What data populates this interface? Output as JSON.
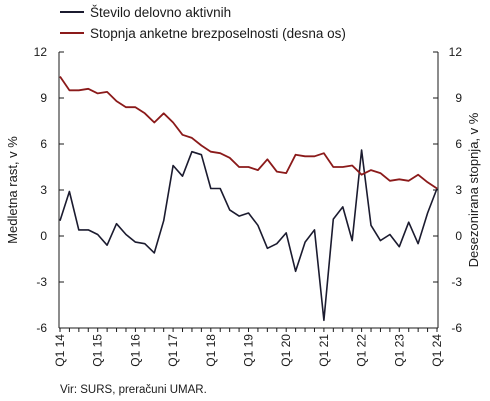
{
  "chart_data": {
    "type": "line",
    "x": [
      "Q1 14",
      "Q2 14",
      "Q3 14",
      "Q4 14",
      "Q1 15",
      "Q2 15",
      "Q3 15",
      "Q4 15",
      "Q1 16",
      "Q2 16",
      "Q3 16",
      "Q4 16",
      "Q1 17",
      "Q2 17",
      "Q3 17",
      "Q4 17",
      "Q1 18",
      "Q2 18",
      "Q3 18",
      "Q4 18",
      "Q1 19",
      "Q2 19",
      "Q3 19",
      "Q4 19",
      "Q1 20",
      "Q2 20",
      "Q3 20",
      "Q4 20",
      "Q1 21",
      "Q2 21",
      "Q3 21",
      "Q4 21",
      "Q1 22",
      "Q2 22",
      "Q3 22",
      "Q4 22",
      "Q1 23",
      "Q2 23",
      "Q3 23",
      "Q4 23",
      "Q1 24"
    ],
    "x_tick_labels": [
      "Q1 14",
      "Q1 15",
      "Q1 16",
      "Q1 17",
      "Q1 18",
      "Q1 19",
      "Q1 20",
      "Q1 21",
      "Q1 22",
      "Q1 23",
      "Q1 24"
    ],
    "series": [
      {
        "name": "Število delovno aktivnih",
        "axis": "left",
        "color": "#1b1b2f",
        "values": [
          1.0,
          2.9,
          0.4,
          0.4,
          0.1,
          -0.6,
          0.8,
          0.1,
          -0.4,
          -0.5,
          -1.1,
          1.0,
          4.6,
          3.9,
          5.5,
          5.3,
          3.1,
          3.1,
          1.7,
          1.3,
          1.5,
          0.7,
          -0.8,
          -0.5,
          0.2,
          -2.3,
          -0.4,
          0.4,
          -5.5,
          1.1,
          1.9,
          -0.3,
          5.6,
          0.7,
          -0.3,
          0.1,
          -0.7,
          0.9,
          -0.5,
          1.5,
          3.1
        ]
      },
      {
        "name": "Stopnja anketne brezposelnosti (desna os)",
        "axis": "right",
        "color": "#8b1a1a",
        "values": [
          10.4,
          9.5,
          9.5,
          9.6,
          9.3,
          9.4,
          8.8,
          8.4,
          8.4,
          8.0,
          7.4,
          8.0,
          7.4,
          6.6,
          6.4,
          5.9,
          5.5,
          5.4,
          5.1,
          4.5,
          4.5,
          4.3,
          5.0,
          4.2,
          4.1,
          5.3,
          5.2,
          5.2,
          5.4,
          4.5,
          4.5,
          4.6,
          4.0,
          4.3,
          4.1,
          3.6,
          3.7,
          3.6,
          4.0,
          3.5,
          3.1
        ]
      }
    ],
    "y_left": {
      "label": "Medletna rast, v %",
      "min": -6,
      "max": 12,
      "ticks": [
        "-6",
        "-3",
        "0",
        "3",
        "6",
        "9",
        "12"
      ]
    },
    "y_right": {
      "label": "Desezonirana stopnja, v %",
      "min": -6,
      "max": 12,
      "ticks": [
        "-6",
        "-3",
        "0",
        "3",
        "6",
        "9",
        "12"
      ]
    },
    "legend_position": "top-left",
    "grid": false,
    "source": "Vir: SURS, preračuni UMAR."
  }
}
